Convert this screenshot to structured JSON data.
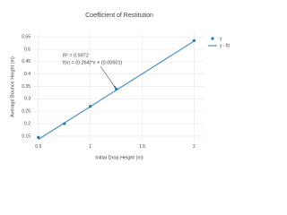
{
  "chart_data": {
    "type": "scatter",
    "title": "Coefficient of Restitution",
    "x_label": "Initial Drop Height (m)",
    "y_label": "Average Bounce Height (m)",
    "annotation": [
      "R² = 0.9972",
      "f(x) = (0.264)*x + (0.00501)"
    ],
    "series": [
      {
        "name": "y",
        "mode": "markers",
        "color": "#1f77b4",
        "x": [
          0.5,
          0.75,
          1,
          1.25,
          2
        ],
        "values": [
          0.145,
          0.2,
          0.27,
          0.34,
          0.535
        ]
      },
      {
        "name": "y - fit",
        "mode": "lines",
        "color": "#4d94c8",
        "x": [
          0.5,
          2
        ],
        "values": [
          0.137,
          0.533
        ]
      }
    ],
    "xlim": [
      0.45,
      2.1
    ],
    "ylim": [
      0.13,
      0.565
    ],
    "xticks": [
      0.5,
      1,
      1.5,
      2
    ],
    "yticks": [
      0.15,
      0.2,
      0.25,
      0.3,
      0.35,
      0.4,
      0.45,
      0.5,
      0.55
    ],
    "grid": true,
    "legend": "top-right"
  }
}
